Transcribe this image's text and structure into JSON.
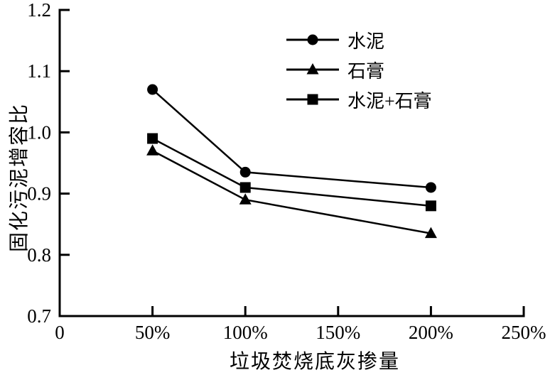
{
  "chart_data": {
    "type": "line",
    "xlabel": "垃圾焚烧底灰掺量",
    "ylabel": "固化污泥增容比",
    "xlim": [
      0,
      250
    ],
    "ylim": [
      0.7,
      1.2
    ],
    "x_unit": "%",
    "x_ticks": [
      {
        "value": 0,
        "label": "0"
      },
      {
        "value": 50,
        "label": "50%"
      },
      {
        "value": 100,
        "label": "100%"
      },
      {
        "value": 150,
        "label": "150%"
      },
      {
        "value": 200,
        "label": "200%"
      },
      {
        "value": 250,
        "label": "250%"
      }
    ],
    "y_ticks": [
      {
        "value": 0.7,
        "label": "0.7"
      },
      {
        "value": 0.8,
        "label": "0.8"
      },
      {
        "value": 0.9,
        "label": "0.9"
      },
      {
        "value": 1.0,
        "label": "1.0"
      },
      {
        "value": 1.1,
        "label": "1.1"
      },
      {
        "value": 1.2,
        "label": "1.2"
      }
    ],
    "x": [
      50,
      100,
      200
    ],
    "series": [
      {
        "name": "水泥",
        "marker": "circle",
        "values": [
          1.07,
          0.935,
          0.91
        ]
      },
      {
        "name": "石膏",
        "marker": "triangle",
        "values": [
          0.97,
          0.89,
          0.835
        ]
      },
      {
        "name": "水泥+石膏",
        "marker": "square",
        "values": [
          0.99,
          0.91,
          0.88
        ]
      }
    ],
    "grid": false,
    "legend_position": "upper-center",
    "colors": {
      "line": "#000000",
      "text": "#000000",
      "background": "#ffffff"
    }
  }
}
